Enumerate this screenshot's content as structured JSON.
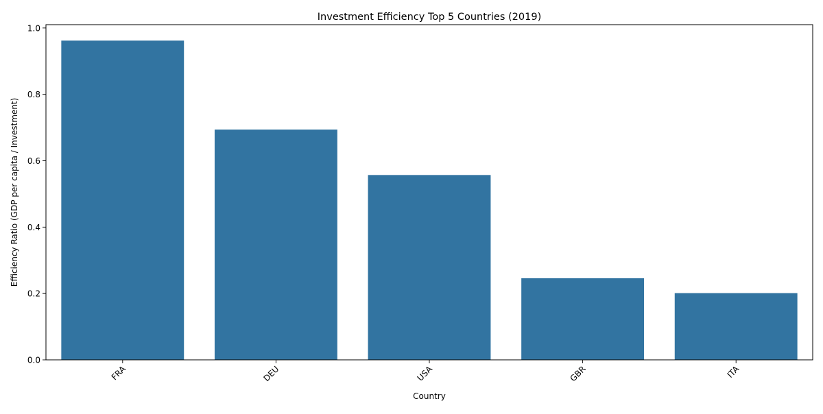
{
  "chart_data": {
    "type": "bar",
    "title": "Investment Efficiency Top 5 Countries (2019)",
    "xlabel": "Country",
    "ylabel": "Efficiency Ratio (GDP per capita / Investment)",
    "categories": [
      "FRA",
      "DEU",
      "USA",
      "GBR",
      "ITA"
    ],
    "values": [
      0.962,
      0.694,
      0.557,
      0.246,
      0.201
    ],
    "ylim": [
      0,
      1.01
    ],
    "yticks": [
      0.0,
      0.2,
      0.4,
      0.6,
      0.8,
      1.0
    ],
    "ytick_labels": [
      "0.0",
      "0.2",
      "0.4",
      "0.6",
      "0.8",
      "1.0"
    ],
    "xtick_rotation_deg": 45,
    "grid": false,
    "bar_color": "#3274a1"
  }
}
